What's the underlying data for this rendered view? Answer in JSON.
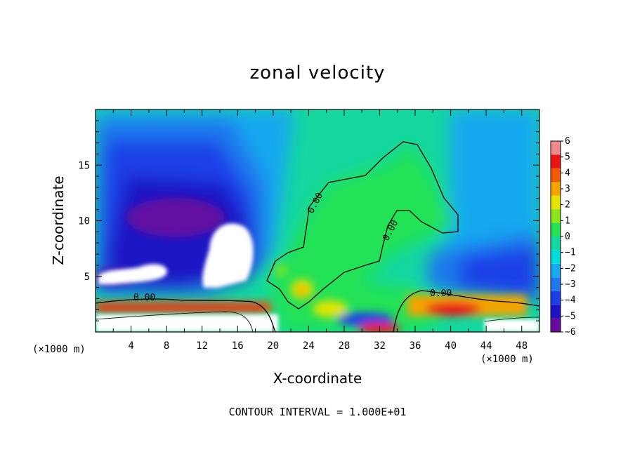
{
  "chart_data": {
    "type": "heatmap",
    "title": "zonal velocity",
    "xlabel": "X-coordinate",
    "ylabel": "Z-coordinate",
    "x_unit": "(×1000 m)",
    "y_unit": "(×1000 m)",
    "xlim": [
      0,
      50
    ],
    "ylim": [
      0,
      20
    ],
    "x_ticks": [
      4,
      8,
      12,
      16,
      20,
      24,
      28,
      32,
      36,
      40,
      44,
      48
    ],
    "y_ticks": [
      5,
      10,
      15
    ],
    "colorbar": {
      "levels": [
        -6,
        -5,
        -4,
        -3,
        -2,
        -1,
        0,
        1,
        2,
        3,
        4,
        5,
        6
      ],
      "colors": [
        "#6a0a9e",
        "#1b12c4",
        "#1b3fe8",
        "#1f78ec",
        "#16a8f0",
        "#00dcdc",
        "#14d8a0",
        "#24e254",
        "#8ce41a",
        "#e4e400",
        "#f4a400",
        "#f25a00",
        "#ec1414",
        "#f08a8a"
      ]
    },
    "contour_labels": [
      "0.00",
      "0.00",
      "0.00",
      "0.00"
    ],
    "footnote": "CONTOUR INTERVAL = 1.000E+01"
  }
}
